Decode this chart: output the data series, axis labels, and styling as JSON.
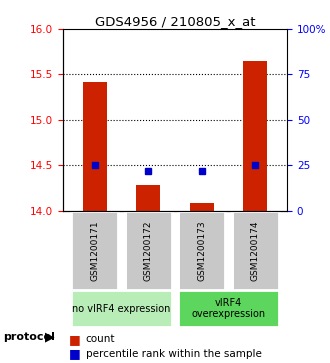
{
  "title": "GDS4956 / 210805_x_at",
  "samples": [
    "GSM1200171",
    "GSM1200172",
    "GSM1200173",
    "GSM1200174"
  ],
  "red_values": [
    15.42,
    14.28,
    14.08,
    15.65
  ],
  "blue_values": [
    14.5,
    14.44,
    14.44,
    14.5
  ],
  "ymin": 14.0,
  "ymax": 16.0,
  "y_ticks_left": [
    14,
    14.5,
    15,
    15.5,
    16
  ],
  "y_ticks_right": [
    0,
    25,
    50,
    75,
    100
  ],
  "groups": [
    {
      "label": "no vIRF4 expression",
      "samples": [
        0,
        1
      ],
      "color": "#b8edb8"
    },
    {
      "label": "vIRF4\noverexpression",
      "samples": [
        2,
        3
      ],
      "color": "#5cd65c"
    }
  ],
  "bar_color": "#cc2200",
  "dot_color": "#0000cc",
  "bar_width": 0.45,
  "box_color": "#c8c8c8",
  "box_edge_color": "#ffffff"
}
